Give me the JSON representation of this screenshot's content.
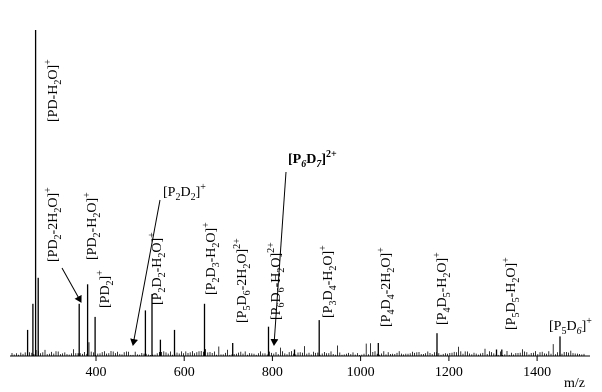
{
  "chart_data": {
    "type": "bar",
    "subtype": "mass-spectrum",
    "xlabel": "m/z",
    "ylabel": "",
    "xlim": [
      205,
      1520
    ],
    "ylim": [
      0,
      100
    ],
    "xticks": [
      400,
      600,
      800,
      1000,
      1200,
      1400
    ],
    "grid": false,
    "peaks": [
      {
        "x": 263,
        "y": 100
      },
      {
        "x": 257,
        "y": 16
      },
      {
        "x": 269,
        "y": 24
      },
      {
        "x": 245,
        "y": 8
      },
      {
        "x": 362,
        "y": 16
      },
      {
        "x": 381,
        "y": 22
      },
      {
        "x": 398,
        "y": 12
      },
      {
        "x": 512,
        "y": 14
      },
      {
        "x": 527,
        "y": 19
      },
      {
        "x": 546,
        "y": 5
      },
      {
        "x": 578,
        "y": 8
      },
      {
        "x": 646,
        "y": 16
      },
      {
        "x": 710,
        "y": 4
      },
      {
        "x": 791,
        "y": 9
      },
      {
        "x": 850,
        "y": 2
      },
      {
        "x": 906,
        "y": 11
      },
      {
        "x": 1040,
        "y": 4
      },
      {
        "x": 1173,
        "y": 7
      },
      {
        "x": 1308,
        "y": 2
      },
      {
        "x": 1320,
        "y": 2
      },
      {
        "x": 1452,
        "y": 6
      }
    ],
    "annotations": [
      {
        "id": "pd-h2o",
        "base": "[PD-H",
        "sub": "2",
        "tail": "O]",
        "sup": "+",
        "x": 263
      },
      {
        "id": "pd2-2h2o",
        "base": "[PD",
        "sub": "2",
        "tail": "-2H",
        "sub2": "2",
        "tail2": "O]",
        "sup": "+",
        "x": 362
      },
      {
        "id": "pd2-h2o",
        "base": "[PD",
        "sub": "2",
        "tail": "-H",
        "sub2": "2",
        "tail2": "O]",
        "sup": "+",
        "x": 381
      },
      {
        "id": "pd2",
        "base": "[PD",
        "sub": "2",
        "tail": "]",
        "sup": "+",
        "x": 398
      },
      {
        "id": "p2d2-h2o",
        "text": "[P2D2-H2O]+",
        "x": 512
      },
      {
        "id": "p2d2",
        "text": "[P2D2]+",
        "x": 527
      },
      {
        "id": "p2d3-h2o",
        "text": "[P2D3-H2O]+",
        "x": 646
      },
      {
        "id": "p5d6-2h2o",
        "text": "[P5D6-2H2O]2+",
        "x": 710
      },
      {
        "id": "p6d6-h2o",
        "text": "[P6D6-H2O]2+",
        "x": 791
      },
      {
        "id": "p6d7",
        "text": "[P6D7]2+",
        "x": 850
      },
      {
        "id": "p3d4-h2o",
        "text": "[P3D4-H2O]+",
        "x": 906
      },
      {
        "id": "p4d4-2h2o",
        "text": "[P4D4-2H2O]+",
        "x": 1040
      },
      {
        "id": "p4d5-h2o",
        "text": "[P4D5-H2O]+",
        "x": 1173
      },
      {
        "id": "p5d5-h2o",
        "text": "[P5D5-H2O]+",
        "x": 1320
      },
      {
        "id": "p5d6",
        "text": "[P5D6]+",
        "x": 1452
      }
    ]
  }
}
